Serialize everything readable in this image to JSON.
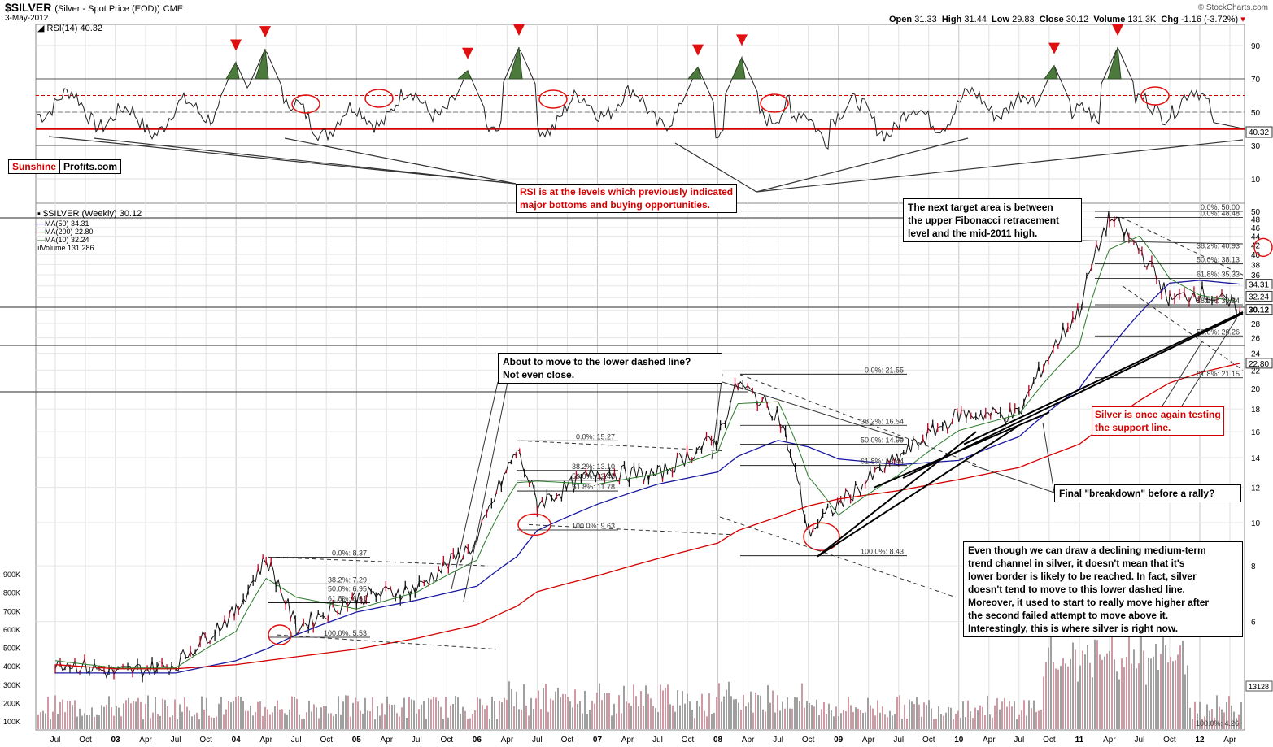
{
  "header": {
    "symbol": "$SILVER",
    "name": "(Silver - Spot Price (EOD))",
    "exchange": "CME",
    "date": "3-May-2012",
    "open_label": "Open",
    "open": "31.33",
    "high_label": "High",
    "high": "31.44",
    "low_label": "Low",
    "low": "29.83",
    "close_label": "Close",
    "close": "30.12",
    "volume_label": "Volume",
    "volume": "131.3K",
    "chg_label": "Chg",
    "chg": "-1.16 (-3.72%)",
    "credit": "© StockCharts.com"
  },
  "logo": {
    "part1": "Sunshine",
    "part2": "Profits.com"
  },
  "rsi_panel": {
    "label": "RSI(14) 40.32",
    "current_tag": "40.32",
    "ticks": [
      90,
      70,
      50,
      30,
      10
    ]
  },
  "price_panel": {
    "legend": [
      "$SILVER (Weekly) 30.12",
      "MA(50) 34.31",
      "MA(200) 22.80",
      "MA(10) 32.24",
      "Volume 131,286"
    ],
    "legend_colors": [
      "#000000",
      "#1a1aa0",
      "#d40000",
      "#2a7a2a",
      "#555555"
    ],
    "price_ticks": [
      50,
      48,
      46,
      44,
      42,
      40,
      38,
      36,
      34,
      32,
      30,
      28,
      26,
      24,
      22,
      20,
      18,
      16,
      14,
      12,
      10,
      8,
      6
    ],
    "price_tags": [
      {
        "label": "34.31",
        "value": 34.31
      },
      {
        "label": "32.24",
        "value": 32.24
      },
      {
        "label": "30.12",
        "value": 30.12
      },
      {
        "label": "22.80",
        "value": 22.8
      }
    ],
    "volume_ticks": [
      "900K",
      "800K",
      "700K",
      "600K",
      "500K",
      "400K",
      "300K",
      "200K",
      "100K"
    ],
    "volume_tag": "13128"
  },
  "x_axis": {
    "labels": [
      "Jul",
      "Oct",
      "03",
      "Apr",
      "Jul",
      "Oct",
      "04",
      "Apr",
      "Jul",
      "Oct",
      "05",
      "Apr",
      "Jul",
      "Oct",
      "06",
      "Apr",
      "Jul",
      "Oct",
      "07",
      "Apr",
      "Jul",
      "Oct",
      "08",
      "Apr",
      "Jul",
      "Oct",
      "09",
      "Apr",
      "Jul",
      "Oct",
      "10",
      "Apr",
      "Jul",
      "Oct",
      "11",
      "Apr",
      "Jul",
      "Oct",
      "12",
      "Apr"
    ]
  },
  "fib_labels": {
    "f2004": [
      "0.0%: 8.37",
      "38.2%: 7.29",
      "50.0%: 6.95",
      "61.8%: 6.61",
      "100.0%: 5.53"
    ],
    "f2006": [
      "0.0%: 15.27",
      "38.2%: 13.10",
      "50.0%: 12.45",
      "61.8%: 11.78",
      "100.0%: 9.63"
    ],
    "f2008": [
      "0.0%: 21.55",
      "38.2%: 16.54",
      "50.0%: 14.99",
      "61.8%: 13.44",
      "100.0%: 8.43"
    ],
    "f2011": [
      "0.0%: 50.00",
      "0.0%: 48.48",
      "38.2%: 40.93",
      "50.0%: 38.13",
      "61.8%: 35.33",
      "38.2%: 30.84",
      "50.0%: 26.26",
      "61.8%: 21.15",
      "100.0%: 4.26"
    ]
  },
  "annotations": {
    "rsi_note": "RSI is at the levels which previously indicated\nmajor bottoms and buying opportunities.",
    "target_note": "The next target area is between\nthe upper Fibonacci retracement\nlevel and the mid-2011 high.",
    "dashed_note": "About to move to the lower dashed line?\nNot even close.",
    "support_note": "Silver is once again testing\nthe support line.",
    "breakdown_note": "Final \"breakdown\" before a rally?",
    "channel_note": "Even though we can draw a declining medium-term\ntrend channel in silver, it doesn't mean that it's\nlower border is likely to be reached. In fact, silver\ndoesn't tend to move to this lower dashed line.\nMoreover, it used to start to really move higher after\nthe second failed attempt to move above it.\nInterestingly, this is where silver is right now."
  },
  "chart_data": {
    "type": "line",
    "title": "$SILVER (Silver - Spot Price (EOD)) CME",
    "x": [
      "2002-07",
      "2003-01",
      "2003-07",
      "2004-01",
      "2004-04",
      "2004-07",
      "2005-01",
      "2005-07",
      "2006-01",
      "2006-05",
      "2006-07",
      "2007-01",
      "2007-07",
      "2008-01",
      "2008-03",
      "2008-07",
      "2008-10",
      "2009-01",
      "2009-07",
      "2010-01",
      "2010-07",
      "2011-01",
      "2011-04",
      "2011-07",
      "2011-10",
      "2012-01",
      "2012-05"
    ],
    "series": [
      {
        "name": "$SILVER (Weekly) 30.12",
        "values": [
          4.9,
          4.6,
          4.8,
          6.3,
          8.3,
          5.8,
          6.8,
          7.1,
          9.0,
          14.5,
          11.0,
          13.0,
          12.8,
          15.5,
          20.5,
          17.5,
          9.5,
          11.0,
          14.0,
          17.5,
          17.5,
          30.0,
          48.5,
          41.0,
          31.5,
          33.0,
          30.12
        ]
      },
      {
        "name": "MA(50) 34.31",
        "values": [
          4.6,
          4.6,
          4.6,
          4.9,
          5.2,
          5.6,
          6.3,
          6.7,
          7.2,
          8.4,
          9.6,
          11.0,
          12.2,
          13.0,
          14.1,
          15.3,
          14.8,
          13.9,
          13.5,
          13.8,
          15.6,
          20.0,
          24.5,
          29.5,
          34.5,
          35.0,
          34.31
        ]
      },
      {
        "name": "MA(200) 22.80",
        "values": [
          4.8,
          4.7,
          4.7,
          4.8,
          4.9,
          5.0,
          5.2,
          5.5,
          5.9,
          6.5,
          7.0,
          7.6,
          8.3,
          9.0,
          9.6,
          10.3,
          10.9,
          11.3,
          11.8,
          12.5,
          13.3,
          15.0,
          16.8,
          18.8,
          20.6,
          21.7,
          22.8
        ]
      }
    ],
    "rsi": {
      "name": "RSI(14) 40.32",
      "peaks": [
        80,
        88,
        75,
        89,
        77,
        83,
        78,
        89
      ],
      "current": 40.32,
      "levels": [
        70,
        60,
        50,
        40,
        30
      ]
    },
    "ylabel": "",
    "ylim": [
      4,
      52
    ],
    "yscale": "log"
  }
}
